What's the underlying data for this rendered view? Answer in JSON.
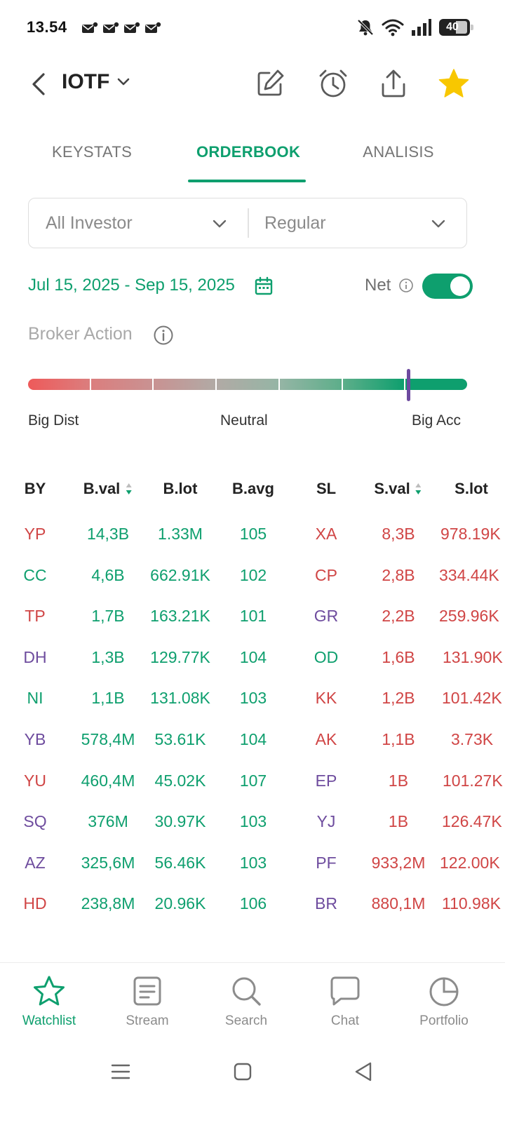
{
  "status_bar": {
    "time": "13.54",
    "battery_level": "40",
    "icons": [
      "mail-notification-icon",
      "mail-notification-icon",
      "mail-notification-icon",
      "mail-notification-icon",
      "mute-icon",
      "wifi-icon",
      "signal-icon",
      "battery-icon"
    ]
  },
  "header": {
    "ticker": "IOTF",
    "icons": [
      "back-chevron-icon",
      "chevron-down-icon",
      "edit-icon",
      "alarm-icon",
      "share-icon",
      "star-filled-icon"
    ],
    "favorite_color": "#f8c700"
  },
  "tabs": [
    {
      "label": "KEYSTATS",
      "active": false
    },
    {
      "label": "ORDERBOOK",
      "active": true
    },
    {
      "label": "ANALISIS",
      "active": false
    }
  ],
  "filters": {
    "investor": "All Investor",
    "market": "Regular"
  },
  "date_range": "Jul 15, 2025 - Sep 15, 2025",
  "net": {
    "label": "Net",
    "enabled": true
  },
  "broker_action": {
    "title": "Broker Action",
    "labels": {
      "left": "Big Dist",
      "center": "Neutral",
      "right": "Big Acc"
    },
    "level_fraction": 0.866,
    "segment_colors": [
      "#ee5a5a",
      "#db7e7e",
      "#c99292",
      "#b1aaa5",
      "#95b5a5",
      "#5dae8a",
      "#0e9f6e"
    ]
  },
  "table": {
    "headers": {
      "by": "BY",
      "bval": "B.val",
      "blot": "B.lot",
      "bavg": "B.avg",
      "sl": "SL",
      "sval": "S.val",
      "slot": "S.lot"
    },
    "rows": [
      {
        "by": "YP",
        "by_color": "red",
        "bval": "14,3B",
        "blot": "1.33M",
        "bavg": "105",
        "sl": "XA",
        "sl_color": "red",
        "sval": "8,3B",
        "slot": "978.19K"
      },
      {
        "by": "CC",
        "by_color": "green",
        "bval": "4,6B",
        "blot": "662.91K",
        "bavg": "102",
        "sl": "CP",
        "sl_color": "red",
        "sval": "2,8B",
        "slot": "334.44K"
      },
      {
        "by": "TP",
        "by_color": "red",
        "bval": "1,7B",
        "blot": "163.21K",
        "bavg": "101",
        "sl": "GR",
        "sl_color": "purple",
        "sval": "2,2B",
        "slot": "259.96K"
      },
      {
        "by": "DH",
        "by_color": "purple",
        "bval": "1,3B",
        "blot": "129.77K",
        "bavg": "104",
        "sl": "OD",
        "sl_color": "green",
        "sval": "1,6B",
        "slot": "131.90K"
      },
      {
        "by": "NI",
        "by_color": "green",
        "bval": "1,1B",
        "blot": "131.08K",
        "bavg": "103",
        "sl": "KK",
        "sl_color": "red",
        "sval": "1,2B",
        "slot": "101.42K"
      },
      {
        "by": "YB",
        "by_color": "purple",
        "bval": "578,4M",
        "blot": "53.61K",
        "bavg": "104",
        "sl": "AK",
        "sl_color": "red",
        "sval": "1,1B",
        "slot": "3.73K"
      },
      {
        "by": "YU",
        "by_color": "red",
        "bval": "460,4M",
        "blot": "45.02K",
        "bavg": "107",
        "sl": "EP",
        "sl_color": "purple",
        "sval": "1B",
        "slot": "101.27K"
      },
      {
        "by": "SQ",
        "by_color": "purple",
        "bval": "376M",
        "blot": "30.97K",
        "bavg": "103",
        "sl": "YJ",
        "sl_color": "purple",
        "sval": "1B",
        "slot": "126.47K"
      },
      {
        "by": "AZ",
        "by_color": "purple",
        "bval": "325,6M",
        "blot": "56.46K",
        "bavg": "103",
        "sl": "PF",
        "sl_color": "purple",
        "sval": "933,2M",
        "slot": "122.00K"
      },
      {
        "by": "HD",
        "by_color": "red",
        "bval": "238,8M",
        "blot": "20.96K",
        "bavg": "106",
        "sl": "BR",
        "sl_color": "purple",
        "sval": "880,1M",
        "slot": "110.98K"
      }
    ]
  },
  "bottom_nav": [
    {
      "label": "Watchlist",
      "icon": "star-outline-icon",
      "active": true
    },
    {
      "label": "Stream",
      "icon": "stream-icon",
      "active": false
    },
    {
      "label": "Search",
      "icon": "search-icon",
      "active": false
    },
    {
      "label": "Chat",
      "icon": "chat-icon",
      "active": false
    },
    {
      "label": "Portfolio",
      "icon": "pie-chart-icon",
      "active": false
    }
  ],
  "system_nav": [
    "menu-icon",
    "home-icon",
    "back-icon"
  ],
  "colors": {
    "accent": "#0e9f6e",
    "sell_red": "#d04545",
    "purple": "#6e4c9e"
  }
}
